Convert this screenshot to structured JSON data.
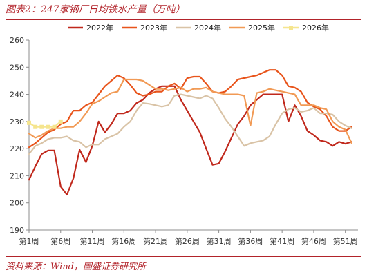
{
  "figure": {
    "title": "图表2：247家钢厂日均铁水产量（万吨）",
    "source": "资料来源：Wind，国盛证券研究所"
  },
  "chart_data": {
    "type": "line",
    "xlabel": "",
    "ylabel": "",
    "ylim": [
      190,
      260
    ],
    "yticks": [
      190,
      200,
      210,
      220,
      230,
      240,
      250,
      260
    ],
    "xlim": [
      1,
      53
    ],
    "xticks": [
      1,
      6,
      11,
      16,
      21,
      26,
      31,
      36,
      41,
      46,
      51
    ],
    "xtick_labels": [
      "第1周",
      "第6周",
      "第11周",
      "第16周",
      "第21周",
      "第26周",
      "第31周",
      "第36周",
      "第41周",
      "第46周",
      "第51周"
    ],
    "grid": false,
    "legend_position": "top",
    "series": [
      {
        "name": "2022年",
        "color": "#c0281c",
        "marker": "none",
        "x": [
          1,
          2,
          3,
          4,
          5,
          6,
          7,
          8,
          9,
          10,
          11,
          12,
          13,
          14,
          15,
          16,
          17,
          18,
          19,
          20,
          21,
          22,
          23,
          24,
          25,
          26,
          27,
          28,
          29,
          30,
          31,
          32,
          33,
          34,
          35,
          36,
          37,
          38,
          39,
          40,
          41,
          42,
          43,
          44,
          45,
          46,
          47,
          48,
          49,
          50,
          51,
          52
        ],
        "values": [
          208.5,
          213.5,
          218,
          219.3,
          219.3,
          206,
          203,
          209,
          219.6,
          215,
          221,
          230,
          226,
          229,
          233,
          233,
          234,
          236.8,
          238,
          240.5,
          242,
          243,
          243,
          243,
          238,
          234,
          230,
          226,
          220,
          214,
          214.5,
          219,
          224,
          229,
          232,
          236,
          238,
          240,
          240,
          240,
          240,
          230,
          236,
          232,
          226.5,
          225,
          223,
          222.5,
          221,
          222.5,
          221.8,
          222.5
        ]
      },
      {
        "name": "2023年",
        "color": "#e8541b",
        "marker": "none",
        "x": [
          1,
          2,
          3,
          4,
          5,
          6,
          7,
          8,
          9,
          10,
          11,
          12,
          13,
          14,
          15,
          16,
          17,
          18,
          19,
          20,
          21,
          22,
          23,
          24,
          25,
          26,
          27,
          28,
          29,
          30,
          31,
          32,
          33,
          34,
          35,
          36,
          37,
          38,
          39,
          40,
          41,
          42,
          43,
          44,
          45,
          46,
          47,
          48,
          49,
          50,
          51,
          52
        ],
        "values": [
          220.5,
          222,
          224,
          226,
          227,
          229,
          230,
          234,
          234,
          236,
          237,
          240,
          243,
          245,
          247,
          246,
          243.5,
          240.5,
          239.5,
          240,
          241,
          241,
          243,
          244,
          242,
          246,
          246.5,
          246.5,
          244,
          241,
          240.5,
          241,
          243,
          245.5,
          246,
          246.5,
          247,
          248,
          249,
          249,
          247,
          243,
          242.5,
          241,
          237,
          235.5,
          234.5,
          232,
          228,
          226.5,
          226.5,
          228
        ]
      },
      {
        "name": "2024年",
        "color": "#d9c3a6",
        "marker": "none",
        "x": [
          1,
          2,
          3,
          4,
          5,
          6,
          7,
          8,
          9,
          10,
          11,
          12,
          13,
          14,
          15,
          16,
          17,
          18,
          19,
          20,
          21,
          22,
          23,
          24,
          25,
          26,
          27,
          28,
          29,
          30,
          31,
          32,
          33,
          34,
          35,
          36,
          37,
          38,
          39,
          40,
          41,
          42,
          43,
          44,
          45,
          46,
          47,
          48,
          49,
          50,
          51,
          52
        ],
        "values": [
          218,
          221,
          222,
          223.5,
          224,
          224,
          224.5,
          223,
          222.5,
          220.5,
          221.5,
          221.5,
          223.5,
          224.5,
          225.5,
          228,
          230,
          234,
          236.8,
          236.5,
          236,
          235.5,
          236,
          239.5,
          240,
          239.5,
          239,
          238.5,
          239.5,
          238.5,
          235,
          231,
          228,
          224.5,
          221,
          222,
          222.5,
          223,
          224.5,
          229,
          233,
          234.5,
          235,
          233.5,
          234,
          235,
          233,
          233,
          232.5,
          230,
          228.5,
          227.5
        ]
      },
      {
        "name": "2025年",
        "color": "#f19a55",
        "marker": "none",
        "x": [
          1,
          2,
          3,
          4,
          5,
          6,
          7,
          8,
          9,
          10,
          11,
          12,
          13,
          14,
          15,
          16,
          17,
          18,
          19,
          20,
          21,
          22,
          23,
          24,
          25,
          26,
          27,
          28,
          29,
          30,
          31,
          32,
          33,
          34,
          35,
          36,
          37,
          38,
          39,
          40,
          41,
          42,
          43,
          44,
          45,
          46,
          47,
          48,
          49,
          50,
          51,
          52
        ],
        "values": [
          225.5,
          224,
          225,
          226.5,
          227.5,
          227.5,
          228,
          228,
          230,
          233,
          236.5,
          237.5,
          239,
          240.5,
          241,
          245.5,
          245.5,
          245.5,
          245,
          243.5,
          242,
          242,
          241.5,
          242,
          242.5,
          241,
          242,
          242,
          242.5,
          241,
          240.5,
          240,
          240,
          240,
          239.5,
          228.5,
          240.5,
          241,
          242,
          241.5,
          241,
          240.5,
          240,
          236,
          236,
          236,
          235,
          234.5,
          230,
          228,
          227,
          222
        ]
      },
      {
        "name": "2026年",
        "color": "#f5e58e",
        "marker": "square",
        "x": [
          1,
          2,
          3,
          4,
          5,
          6
        ],
        "values": [
          229.5,
          228,
          228,
          228,
          228,
          230
        ]
      }
    ]
  }
}
